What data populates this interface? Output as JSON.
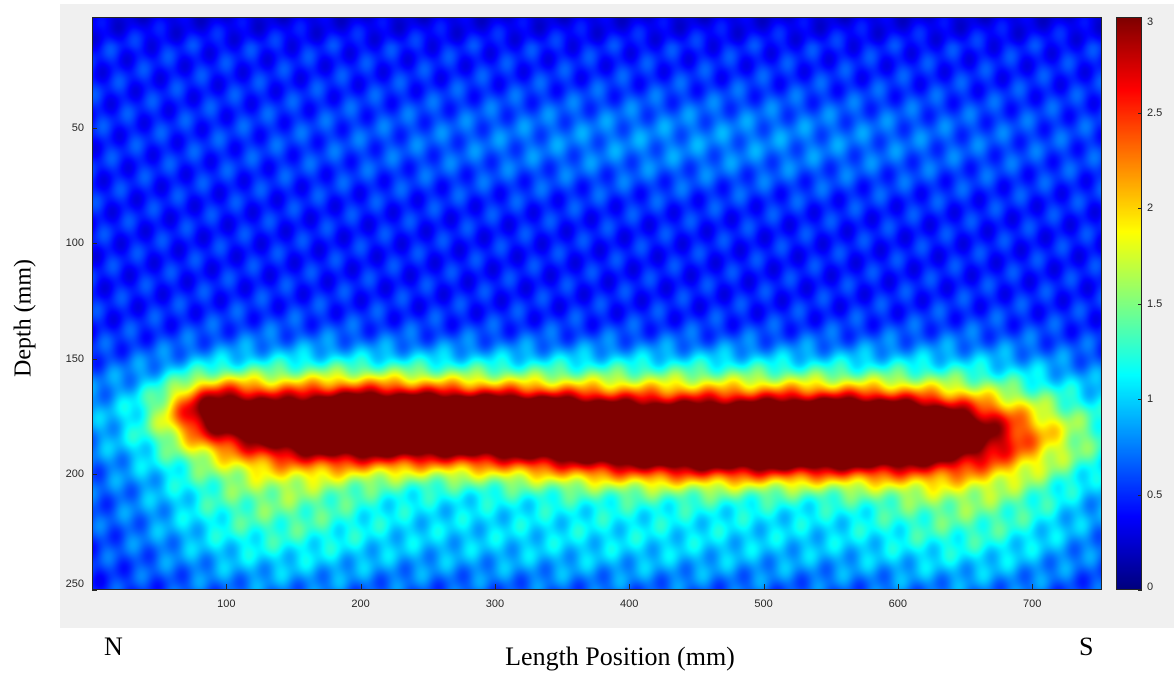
{
  "chart_data": {
    "type": "heatmap",
    "title": "",
    "xlabel": "Length Position (mm)",
    "ylabel": "Depth (mm)",
    "xlim": [
      0,
      752
    ],
    "ylim": [
      250,
      2
    ],
    "x_ticks": [
      "100",
      "200",
      "300",
      "400",
      "500",
      "600",
      "700"
    ],
    "y_ticks": [
      "50",
      "100",
      "150",
      "200",
      "250"
    ],
    "colorbar": {
      "colormap": "jet",
      "range": [
        0,
        3
      ],
      "ticks": [
        "0",
        "0.5",
        "1",
        "1.5",
        "2",
        "2.5",
        "3"
      ]
    },
    "annotations": {
      "left": "N",
      "right": "S"
    },
    "background_level": 0.45,
    "features": [
      {
        "x": 400,
        "y": 180,
        "sx": 220,
        "sy": 16,
        "amp": 1.2
      },
      {
        "x": 130,
        "y": 200,
        "sx": 60,
        "sy": 30,
        "amp": 0.8
      },
      {
        "x": 660,
        "y": 200,
        "sx": 60,
        "sy": 30,
        "amp": 0.8
      },
      {
        "x": 200,
        "y": 178,
        "sx": 70,
        "sy": 11,
        "amp": 2.6
      },
      {
        "x": 90,
        "y": 171,
        "sx": 25,
        "sy": 9,
        "amp": 1.3
      },
      {
        "x": 320,
        "y": 176,
        "sx": 50,
        "sy": 8,
        "amp": 1.2
      },
      {
        "x": 470,
        "y": 185,
        "sx": 130,
        "sy": 12,
        "amp": 2.8
      },
      {
        "x": 580,
        "y": 180,
        "sx": 60,
        "sy": 10,
        "amp": 1.5
      },
      {
        "x": 400,
        "y": 225,
        "sx": 200,
        "sy": 18,
        "amp": 0.6
      },
      {
        "x": 450,
        "y": 55,
        "sx": 200,
        "sy": 15,
        "amp": 0.3
      },
      {
        "x": 230,
        "y": 160,
        "sx": 140,
        "sy": 12,
        "amp": 0.4
      },
      {
        "x": 520,
        "y": 160,
        "sx": 140,
        "sy": 12,
        "amp": 0.4
      }
    ]
  }
}
